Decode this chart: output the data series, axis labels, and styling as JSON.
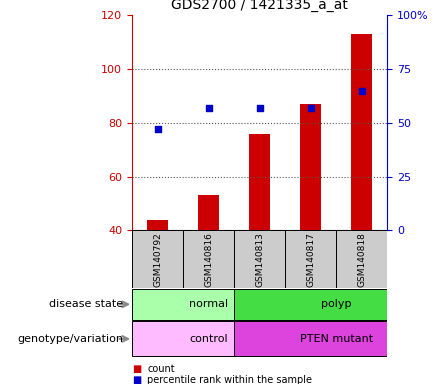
{
  "title": "GDS2700 / 1421335_a_at",
  "samples": [
    "GSM140792",
    "GSM140816",
    "GSM140813",
    "GSM140817",
    "GSM140818"
  ],
  "counts": [
    44,
    53,
    76,
    87,
    113
  ],
  "percentile_ranks": [
    47,
    57,
    57,
    57,
    65
  ],
  "ylim_left": [
    40,
    120
  ],
  "ylim_right": [
    0,
    100
  ],
  "yticks_left": [
    40,
    60,
    80,
    100,
    120
  ],
  "yticks_right": [
    0,
    25,
    50,
    75,
    100
  ],
  "yticklabels_right": [
    "0",
    "25",
    "50",
    "75",
    "100%"
  ],
  "bar_color": "#cc0000",
  "dot_color": "#0000cc",
  "disease_state": [
    {
      "label": "normal",
      "span": [
        0,
        2
      ],
      "color": "#aaffaa"
    },
    {
      "label": "polyp",
      "span": [
        2,
        5
      ],
      "color": "#44dd44"
    }
  ],
  "genotype": [
    {
      "label": "control",
      "span": [
        0,
        2
      ],
      "color": "#ffbbff"
    },
    {
      "label": "PTEN mutant",
      "span": [
        2,
        5
      ],
      "color": "#dd44dd"
    }
  ],
  "disease_row_label": "disease state",
  "genotype_row_label": "genotype/variation",
  "legend_count_label": "count",
  "legend_percentile_label": "percentile rank within the sample",
  "grid_color": "#555555",
  "tick_color_left": "#cc0000",
  "tick_color_right": "#0000cc",
  "bg_color": "#ffffff"
}
